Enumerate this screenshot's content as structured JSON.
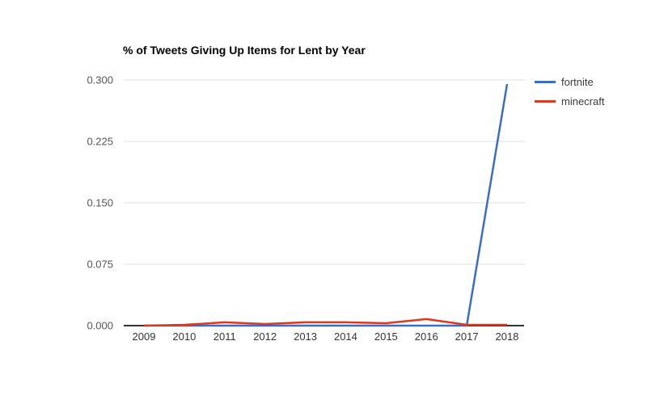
{
  "page": {
    "background": "#ffffff"
  },
  "chart_data": {
    "type": "line",
    "title": "% of Tweets Giving Up Items for Lent by Year",
    "categories": [
      "2009",
      "2010",
      "2011",
      "2012",
      "2013",
      "2014",
      "2015",
      "2016",
      "2017",
      "2018"
    ],
    "series": [
      {
        "name": "fortnite",
        "color": "#3b6cc7",
        "values": [
          0.0,
          0.0,
          0.0,
          0.0,
          0.0,
          0.0,
          0.0,
          0.0,
          0.0,
          0.295
        ]
      },
      {
        "name": "minecraft",
        "color": "#d93b1d",
        "values": [
          0.0,
          0.001,
          0.004,
          0.002,
          0.004,
          0.004,
          0.003,
          0.008,
          0.001,
          0.001
        ]
      }
    ],
    "xlabel": "",
    "ylabel": "",
    "y_ticks": [
      0,
      0.075,
      0.15,
      0.225,
      0.3
    ],
    "y_tick_labels": [
      "0.000",
      "0.075",
      "0.150",
      "0.225",
      "0.300"
    ],
    "ylim": [
      0,
      0.3
    ],
    "grid": true,
    "legend_position": "right",
    "colors": {
      "grid": "#e0e0e0",
      "axis": "#333333",
      "y_tick_text": "#555555",
      "x_tick_text": "#333333",
      "title_text": "#000000",
      "legend_text": "#3c3c3c"
    }
  }
}
